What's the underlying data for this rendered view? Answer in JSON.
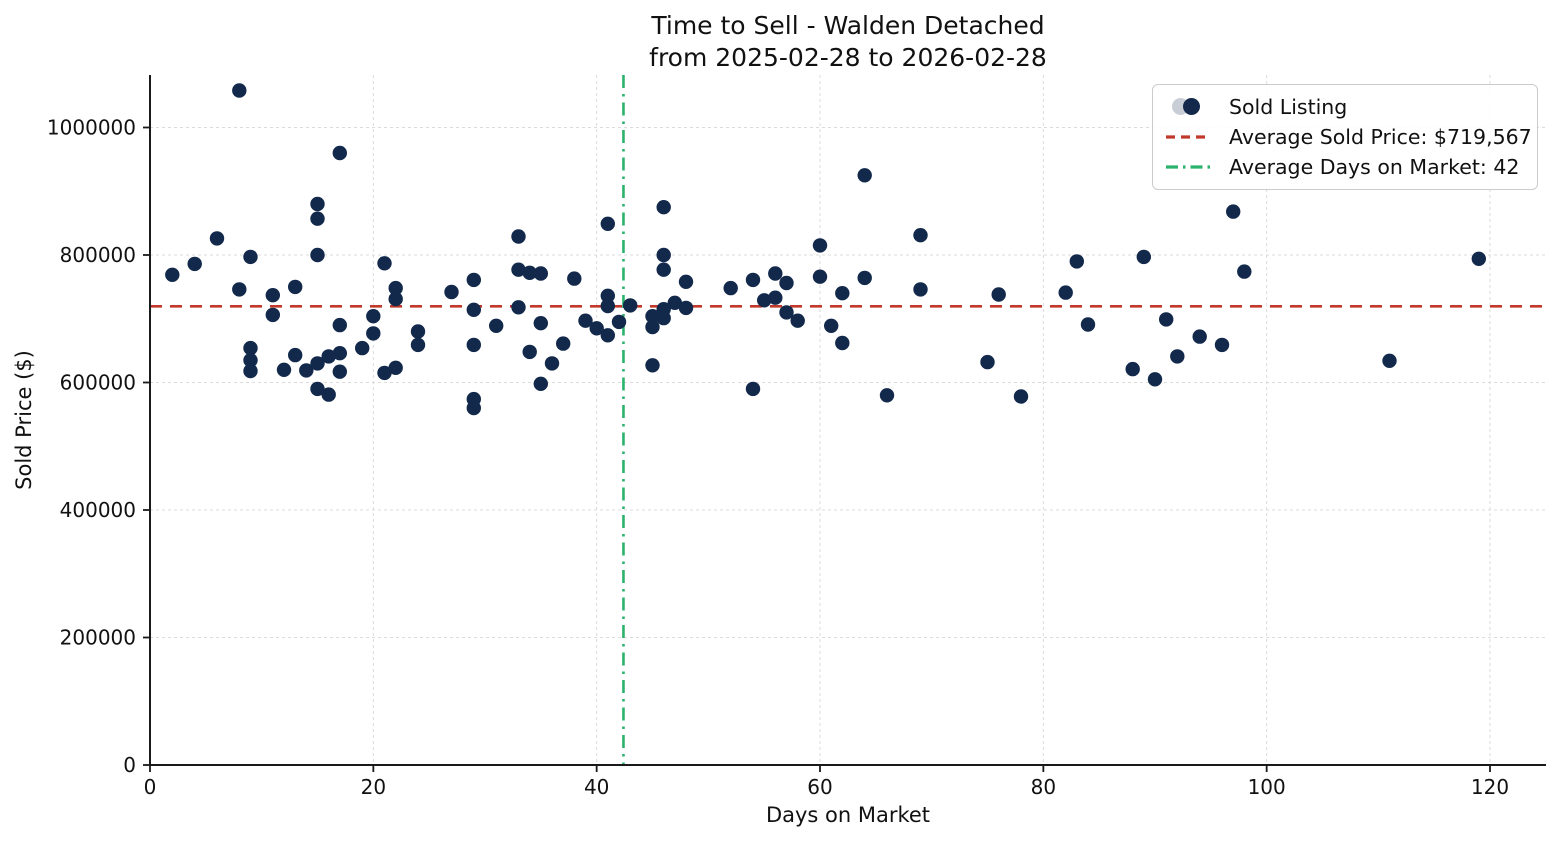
{
  "figure": {
    "background": "#ffffff"
  },
  "colors": {
    "dot": "#13294B",
    "legend_dot_secondary": "#C9CDD5",
    "avg_price_line": "#C0392B",
    "avg_days_line": "#2BB26C",
    "grid": "#DBDBDB",
    "spine": "#1A1A1A",
    "text": "#111111"
  },
  "chart_data": {
    "type": "scatter",
    "title": "Time to Sell - Walden Detached",
    "subtitle": "from 2025-02-28 to 2026-02-28",
    "xlabel": "Days on Market",
    "ylabel": "Sold Price ($)",
    "x_ticks": [
      0,
      20,
      40,
      60,
      80,
      100,
      120
    ],
    "y_ticks": [
      0,
      200000,
      400000,
      600000,
      800000,
      1000000
    ],
    "xlim": [
      0,
      125
    ],
    "ylim": [
      0,
      1082000
    ],
    "grid": true,
    "legend_position": "upper right",
    "series_label": "Sold Listing",
    "average_sold_price": 719567,
    "average_sold_price_label": "Average Sold Price: $719,567",
    "average_days_on_market": 42,
    "average_days_line_day": 42.4,
    "average_days_label": "Average Days on Market: 42",
    "points": [
      [
        2,
        769000
      ],
      [
        4,
        786000
      ],
      [
        6,
        826000
      ],
      [
        8,
        1058000
      ],
      [
        8,
        746000
      ],
      [
        9,
        797000
      ],
      [
        9,
        654000
      ],
      [
        9,
        635000
      ],
      [
        9,
        618000
      ],
      [
        11,
        737000
      ],
      [
        11,
        706000
      ],
      [
        12,
        620000
      ],
      [
        13,
        750000
      ],
      [
        13,
        643000
      ],
      [
        14,
        619000
      ],
      [
        15,
        880000
      ],
      [
        15,
        857000
      ],
      [
        15,
        800000
      ],
      [
        15,
        630000
      ],
      [
        15,
        590000
      ],
      [
        16,
        641000
      ],
      [
        16,
        581000
      ],
      [
        17,
        960000
      ],
      [
        17,
        690000
      ],
      [
        17,
        646000
      ],
      [
        17,
        617000
      ],
      [
        19,
        654000
      ],
      [
        20,
        704000
      ],
      [
        20,
        677000
      ],
      [
        21,
        787000
      ],
      [
        21,
        615000
      ],
      [
        22,
        748000
      ],
      [
        22,
        731000
      ],
      [
        22,
        623000
      ],
      [
        24,
        680000
      ],
      [
        24,
        659000
      ],
      [
        27,
        742000
      ],
      [
        29,
        761000
      ],
      [
        29,
        714000
      ],
      [
        29,
        659000
      ],
      [
        29,
        574000
      ],
      [
        29,
        560000
      ],
      [
        31,
        689000
      ],
      [
        33,
        829000
      ],
      [
        33,
        777000
      ],
      [
        33,
        718000
      ],
      [
        34,
        772000
      ],
      [
        34,
        648000
      ],
      [
        35,
        771000
      ],
      [
        35,
        693000
      ],
      [
        35,
        598000
      ],
      [
        36,
        630000
      ],
      [
        37,
        661000
      ],
      [
        38,
        763000
      ],
      [
        39,
        697000
      ],
      [
        40,
        685000
      ],
      [
        41,
        849000
      ],
      [
        41,
        736000
      ],
      [
        41,
        720000
      ],
      [
        41,
        674000
      ],
      [
        42,
        695000
      ],
      [
        43,
        721000
      ],
      [
        45,
        704000
      ],
      [
        45,
        687000
      ],
      [
        45,
        627000
      ],
      [
        46,
        875000
      ],
      [
        46,
        800000
      ],
      [
        46,
        777000
      ],
      [
        46,
        715000
      ],
      [
        46,
        701000
      ],
      [
        47,
        725000
      ],
      [
        48,
        758000
      ],
      [
        48,
        717000
      ],
      [
        52,
        748000
      ],
      [
        54,
        761000
      ],
      [
        54,
        590000
      ],
      [
        55,
        729000
      ],
      [
        56,
        771000
      ],
      [
        56,
        733000
      ],
      [
        57,
        756000
      ],
      [
        57,
        710000
      ],
      [
        58,
        697000
      ],
      [
        60,
        815000
      ],
      [
        60,
        766000
      ],
      [
        61,
        689000
      ],
      [
        62,
        740000
      ],
      [
        62,
        662000
      ],
      [
        64,
        925000
      ],
      [
        64,
        764000
      ],
      [
        66,
        580000
      ],
      [
        69,
        831000
      ],
      [
        69,
        746000
      ],
      [
        75,
        632000
      ],
      [
        76,
        738000
      ],
      [
        78,
        578000
      ],
      [
        82,
        741000
      ],
      [
        83,
        790000
      ],
      [
        84,
        691000
      ],
      [
        88,
        621000
      ],
      [
        89,
        797000
      ],
      [
        90,
        605000
      ],
      [
        91,
        699000
      ],
      [
        92,
        641000
      ],
      [
        94,
        672000
      ],
      [
        96,
        659000
      ],
      [
        97,
        868000
      ],
      [
        98,
        774000
      ],
      [
        111,
        634000
      ],
      [
        119,
        794000
      ]
    ]
  }
}
